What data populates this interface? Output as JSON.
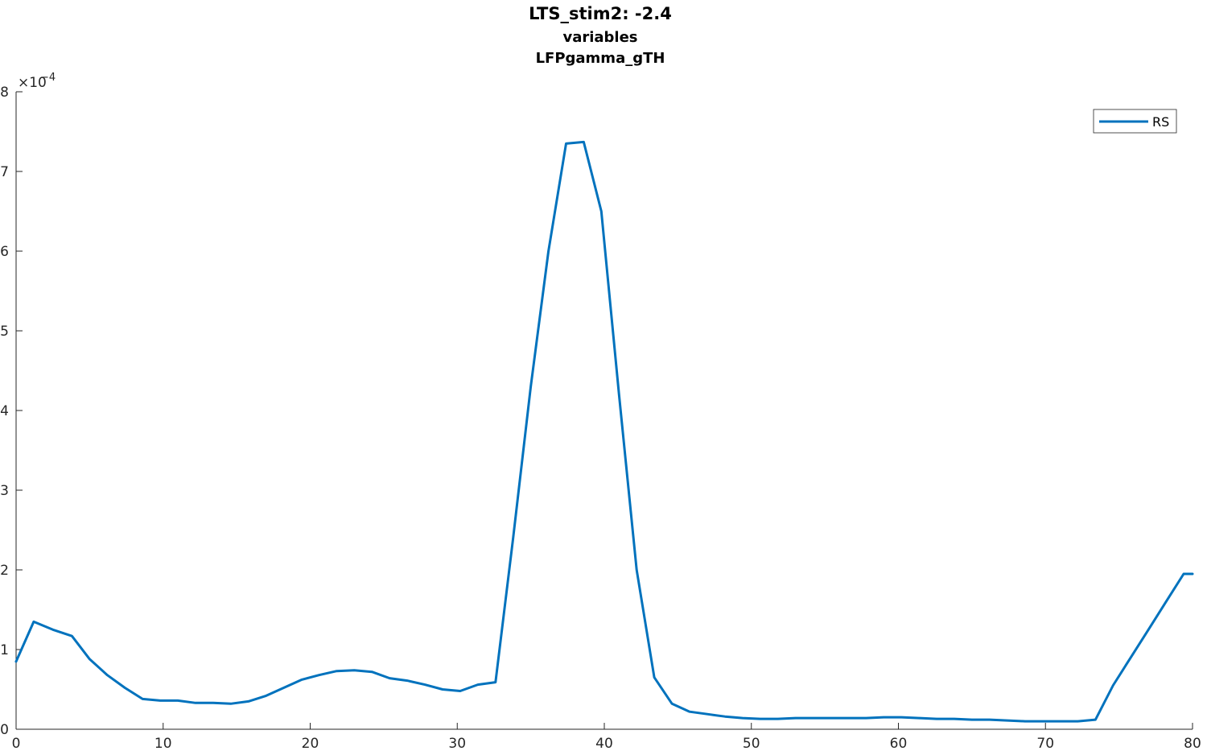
{
  "chart_data": {
    "type": "line",
    "title": "LTS_stim2: -2.4",
    "subtitle": [
      "variables",
      "LFPgamma_gTH"
    ],
    "xlabel": "",
    "ylabel": "",
    "xlim": [
      0,
      80
    ],
    "ylim": [
      0,
      8
    ],
    "y_exponent_label": "×10",
    "y_exponent": "−4",
    "xticks": [
      0,
      10,
      20,
      30,
      40,
      50,
      60,
      70,
      80
    ],
    "yticks": [
      0,
      1,
      2,
      3,
      4,
      5,
      6,
      7,
      8
    ],
    "grid": false,
    "legend_position": "top-right",
    "series": [
      {
        "name": "RS",
        "color": "#0072BD",
        "x": [
          0,
          1.2,
          2.5,
          3.8,
          5.0,
          6.2,
          7.4,
          8.6,
          9.8,
          11.0,
          12.2,
          13.4,
          14.6,
          15.8,
          17.0,
          18.2,
          19.4,
          20.6,
          21.8,
          23.0,
          24.2,
          25.4,
          26.6,
          27.8,
          29.0,
          30.2,
          31.4,
          32.6,
          33.8,
          35.0,
          36.2,
          37.4,
          38.6,
          39.8,
          41.0,
          42.2,
          43.4,
          44.6,
          45.8,
          47.0,
          48.2,
          49.4,
          50.6,
          51.8,
          53.0,
          54.2,
          55.4,
          56.6,
          57.8,
          59.0,
          60.2,
          61.4,
          62.6,
          63.8,
          65.0,
          66.2,
          67.4,
          68.6,
          69.8,
          71.0,
          72.2,
          73.4,
          74.6,
          75.8,
          77.0,
          78.2,
          79.4,
          80
        ],
        "y": [
          0.85,
          1.35,
          1.25,
          1.17,
          0.88,
          0.68,
          0.52,
          0.38,
          0.36,
          0.36,
          0.33,
          0.33,
          0.32,
          0.35,
          0.42,
          0.52,
          0.62,
          0.68,
          0.73,
          0.74,
          0.72,
          0.64,
          0.61,
          0.56,
          0.5,
          0.48,
          0.56,
          0.59,
          2.4,
          4.3,
          6.0,
          7.35,
          7.37,
          6.5,
          4.2,
          2.0,
          0.65,
          0.32,
          0.22,
          0.19,
          0.16,
          0.14,
          0.13,
          0.13,
          0.14,
          0.14,
          0.14,
          0.14,
          0.14,
          0.15,
          0.15,
          0.14,
          0.13,
          0.13,
          0.12,
          0.12,
          0.11,
          0.1,
          0.1,
          0.1,
          0.1,
          0.12,
          0.55,
          0.9,
          1.25,
          1.6,
          1.95,
          1.95
        ]
      }
    ]
  }
}
